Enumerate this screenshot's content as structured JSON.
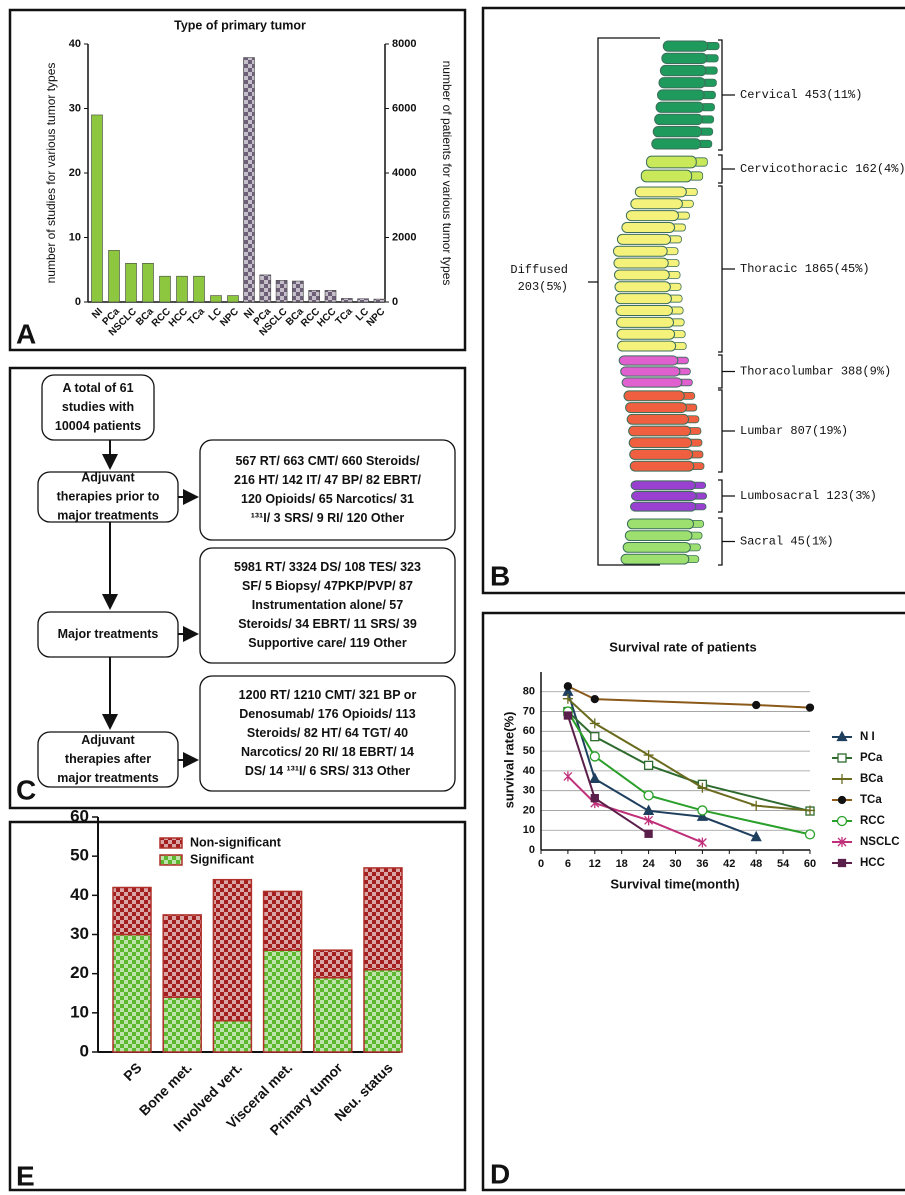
{
  "panel_labels": [
    "A",
    "B",
    "C",
    "D",
    "E"
  ],
  "chart_data": [
    {
      "type": "bar",
      "title": "Type of primary tumor",
      "ylabel": "number of studies for various tumor types",
      "y2label": "number of patients for various tumor types",
      "categories": [
        "NI",
        "PCa",
        "NSCLC",
        "BCa",
        "RCC",
        "HCC",
        "TCa",
        "LC",
        "NPC"
      ],
      "series": [
        {
          "color": "#8dc63f",
          "values": [
            29,
            8,
            6,
            6,
            4,
            4,
            4,
            1,
            1
          ]
        },
        {
          "color": "#6e5f78",
          "axis": "y2",
          "values": [
            7580,
            840,
            670,
            650,
            360,
            360,
            110,
            100,
            90
          ]
        }
      ],
      "ylim": [
        0,
        40
      ],
      "yticks": [
        0,
        10,
        20,
        30,
        40
      ],
      "y2lim": [
        0,
        8000
      ],
      "y2ticks": [
        0,
        2000,
        4000,
        6000,
        8000
      ]
    },
    {
      "type": "line",
      "title": "Survival rate of patients",
      "xlabel": "Survival time(month)",
      "ylabel": "survival rate(%)",
      "xlim": [
        0,
        60
      ],
      "xticks": [
        0,
        6,
        12,
        18,
        24,
        30,
        36,
        42,
        48,
        54,
        60
      ],
      "ylim": [
        0,
        90
      ],
      "yticks": [
        0,
        10,
        20,
        30,
        40,
        50,
        60,
        70,
        80
      ],
      "grid": true,
      "legend": "right",
      "series": [
        {
          "name": "N I",
          "color": "#1f3f5f",
          "marker": "triangle",
          "x": [
            6,
            12,
            24,
            36,
            48
          ],
          "values": [
            80,
            36,
            19.8,
            16.8,
            6.5
          ]
        },
        {
          "name": "PCa",
          "color": "#2e6b2e",
          "marker": "square-open",
          "x": [
            6,
            12,
            24,
            36,
            60
          ],
          "values": [
            70,
            57.3,
            42.8,
            33.2,
            19.7
          ]
        },
        {
          "name": "BCa",
          "color": "#6b6b1f",
          "marker": "plus",
          "x": [
            6,
            12,
            24,
            36,
            48,
            60
          ],
          "values": [
            76.5,
            64,
            48,
            31.5,
            22.4,
            20
          ]
        },
        {
          "name": "TCa",
          "color": "#8b5a1a",
          "marker": "dot",
          "x": [
            6,
            12,
            48,
            60
          ],
          "values": [
            82.8,
            76.3,
            73.3,
            72
          ]
        },
        {
          "name": "RCC",
          "color": "#2aa02a",
          "marker": "circle-open",
          "x": [
            6,
            12,
            24,
            36,
            60
          ],
          "values": [
            70,
            47.3,
            27.6,
            20,
            7.9
          ]
        },
        {
          "name": "NSCLC",
          "color": "#c0307a",
          "marker": "asterisk",
          "x": [
            6,
            12,
            24,
            36
          ],
          "values": [
            37.2,
            23.7,
            15,
            3.8
          ]
        },
        {
          "name": "HCC",
          "color": "#5a1f4a",
          "marker": "square",
          "x": [
            6,
            12,
            24
          ],
          "values": [
            68,
            26.2,
            8.2
          ]
        }
      ]
    },
    {
      "type": "stacked-bar",
      "categories": [
        "PS",
        "Bone met.",
        "Involved vert.",
        "Visceral met.",
        "Primary tumor",
        "Neu. status"
      ],
      "ylim": [
        0,
        60
      ],
      "yticks": [
        0,
        10,
        20,
        30,
        40,
        50,
        60
      ],
      "series": [
        {
          "name": "Significant",
          "color": "#5cb82e",
          "values": [
            30,
            14,
            8,
            26,
            19,
            21
          ]
        },
        {
          "name": "Non-significant",
          "color": "#a31f1f",
          "values": [
            12,
            21,
            36,
            15,
            7,
            26
          ]
        }
      ]
    }
  ],
  "spine": {
    "diffused": [
      "Diffused",
      "203(5%)"
    ],
    "regions": [
      {
        "label": "Cervical 453(11%)",
        "color": "#1e9a5c"
      },
      {
        "label": "Cervicothoracic 162(4%)",
        "color": "#c9e85a"
      },
      {
        "label": "Thoracic 1865(45%)",
        "color": "#f4f27a"
      },
      {
        "label": "Thoracolumbar 388(9%)",
        "color": "#e060d0"
      },
      {
        "label": "Lumbar 807(19%)",
        "color": "#f06040"
      },
      {
        "label": "Lumbosacral 123(3%)",
        "color": "#9a40d0"
      },
      {
        "label": "Sacral 45(1%)",
        "color": "#9ee070"
      }
    ]
  },
  "flowchart": {
    "nodes": [
      {
        "lines": [
          "A total of 61",
          "studies with",
          "10004 patients"
        ]
      },
      {
        "lines": [
          "Adjuvant",
          "therapies prior to",
          "major treatments"
        ]
      },
      {
        "lines": [
          "567 RT/ 663 CMT/ 660 Steroids/",
          "216 HT/ 142 IT/ 47 BP/ 82 EBRT/",
          "120 Opioids/ 65 Narcotics/ 31",
          "¹³¹I/ 3 SRS/ 9 RI/ 120 Other"
        ]
      },
      {
        "lines": [
          "Major treatments"
        ]
      },
      {
        "lines": [
          "5981 RT/ 3324 DS/ 108 TES/ 323",
          "SF/ 5 Biopsy/ 47PKP/PVP/ 87",
          "Instrumentation alone/ 57",
          "Steroids/ 34 EBRT/ 11 SRS/ 39",
          "Supportive care/ 119 Other"
        ]
      },
      {
        "lines": [
          "Adjuvant",
          "therapies after",
          "major treatments"
        ]
      },
      {
        "lines": [
          "1200 RT/ 1210 CMT/ 321 BP or",
          "Denosumab/ 176 Opioids/ 113",
          "Steroids/ 82 HT/ 64 TGT/ 40",
          "Narcotics/ 20 RI/ 18 EBRT/ 14",
          "DS/ 14 ¹³¹I/ 6 SRS/ 313 Other"
        ]
      }
    ]
  }
}
